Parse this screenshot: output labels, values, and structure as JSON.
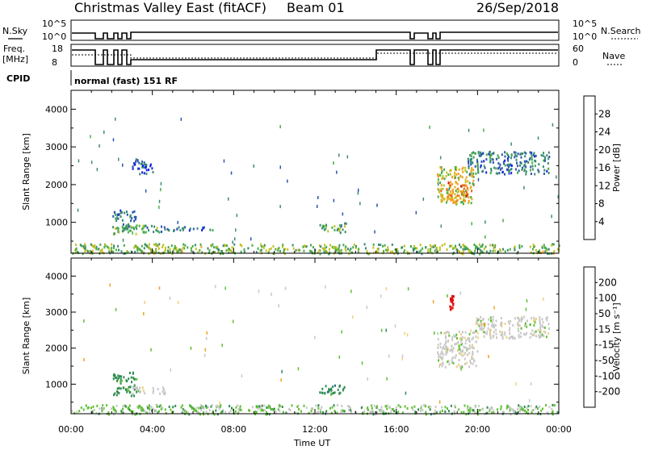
{
  "header": {
    "station": "Christmas Valley East (fitACF)",
    "beam": "Beam 01",
    "date": "26/Sep/2018"
  },
  "param_panels": {
    "nsky_label": "N.Sky",
    "nsky_ticks": [
      "10^5",
      "10^0"
    ],
    "nsearch_label": "N.Search",
    "nsearch_ticks": [
      "10^5",
      "10^0"
    ],
    "freq_label_1": "Freq.",
    "freq_label_2": "[MHz]",
    "freq_ticks": [
      "18",
      "8"
    ],
    "nave_label": "Nave",
    "nave_ticks": [
      "60",
      "0"
    ],
    "cpid_label": "CPID",
    "cpid_value": "normal (fast) 151 RF"
  },
  "chart_data": [
    {
      "type": "heatmap",
      "name": "power",
      "ylabel": "Slant Range [km]",
      "xlabel": "Time UT",
      "x_ticks": [
        "00:00",
        "04:00",
        "08:00",
        "12:00",
        "16:00",
        "20:00",
        "00:00"
      ],
      "xlim_hours": [
        0,
        24
      ],
      "y_ticks": [
        1000,
        2000,
        3000,
        4000
      ],
      "ylim": [
        180,
        4500
      ],
      "colorbar": {
        "label": "Power [dB]",
        "ticks": [
          "4",
          "8",
          "12",
          "16",
          "20",
          "24",
          "28"
        ],
        "range": [
          0,
          30
        ],
        "colors": [
          "#1020e0",
          "#2a55b0",
          "#3a8c70",
          "#46ad46",
          "#c0c020",
          "#f0a020",
          "#f06010",
          "#e01010"
        ]
      },
      "regions": [
        {
          "t": [
            2.0,
            3.2
          ],
          "r": [
            700,
            1000
          ],
          "level": 12
        },
        {
          "t": [
            2.5,
            4.8
          ],
          "r": [
            750,
            950
          ],
          "level": 11
        },
        {
          "t": [
            2.0,
            3.2
          ],
          "r": [
            1050,
            1350
          ],
          "level": 8
        },
        {
          "t": [
            3.0,
            4.0
          ],
          "r": [
            2300,
            2700
          ],
          "level": 6
        },
        {
          "t": [
            5.0,
            7.0
          ],
          "r": [
            800,
            900
          ],
          "level": 7
        },
        {
          "t": [
            12.2,
            13.5
          ],
          "r": [
            750,
            1000
          ],
          "level": 13
        },
        {
          "t": [
            18.0,
            19.8
          ],
          "r": [
            1500,
            2500
          ],
          "level": 18
        },
        {
          "t": [
            18.5,
            19.5
          ],
          "r": [
            1600,
            2100
          ],
          "level": 22
        },
        {
          "t": [
            19.5,
            23.5
          ],
          "r": [
            2300,
            2900
          ],
          "level": 8
        },
        {
          "t": [
            0.0,
            24.0
          ],
          "r": [
            190,
            450
          ],
          "level": 14
        }
      ]
    },
    {
      "type": "heatmap",
      "name": "velocity",
      "ylabel": "Slant Range [km]",
      "xlabel": "Time UT",
      "x_ticks": [
        "00:00",
        "04:00",
        "08:00",
        "12:00",
        "16:00",
        "20:00",
        "00:00"
      ],
      "xlim_hours": [
        0,
        24
      ],
      "y_ticks": [
        1000,
        2000,
        3000,
        4000
      ],
      "ylim": [
        180,
        4500
      ],
      "colorbar": {
        "label": "Velocity [m s⁻¹]",
        "ticks": [
          "200",
          "100",
          "50",
          "15",
          "-15",
          "-50",
          "-100",
          "-200"
        ],
        "colors": [
          "#2040c0",
          "#2a6a90",
          "#2e8c50",
          "#5cc030",
          "#c8c8c8",
          "#f0d080",
          "#f0a020",
          "#f06010",
          "#e01010"
        ]
      },
      "regions": [
        {
          "t": [
            2.0,
            3.2
          ],
          "r": [
            700,
            1000
          ],
          "level": 50
        },
        {
          "t": [
            3.0,
            4.8
          ],
          "r": [
            750,
            950
          ],
          "level": 0
        },
        {
          "t": [
            2.0,
            3.2
          ],
          "r": [
            1050,
            1350
          ],
          "level": 50
        },
        {
          "t": [
            12.2,
            13.5
          ],
          "r": [
            750,
            1000
          ],
          "level": 60
        },
        {
          "t": [
            18.0,
            20.0
          ],
          "r": [
            1500,
            2500
          ],
          "level": 0
        },
        {
          "t": [
            19.8,
            23.5
          ],
          "r": [
            2300,
            2900
          ],
          "level": 0
        },
        {
          "t": [
            18.6,
            18.8
          ],
          "r": [
            3100,
            3500
          ],
          "level": -200
        },
        {
          "t": [
            0.0,
            24.0
          ],
          "r": [
            190,
            450
          ],
          "level": 20
        }
      ]
    }
  ]
}
